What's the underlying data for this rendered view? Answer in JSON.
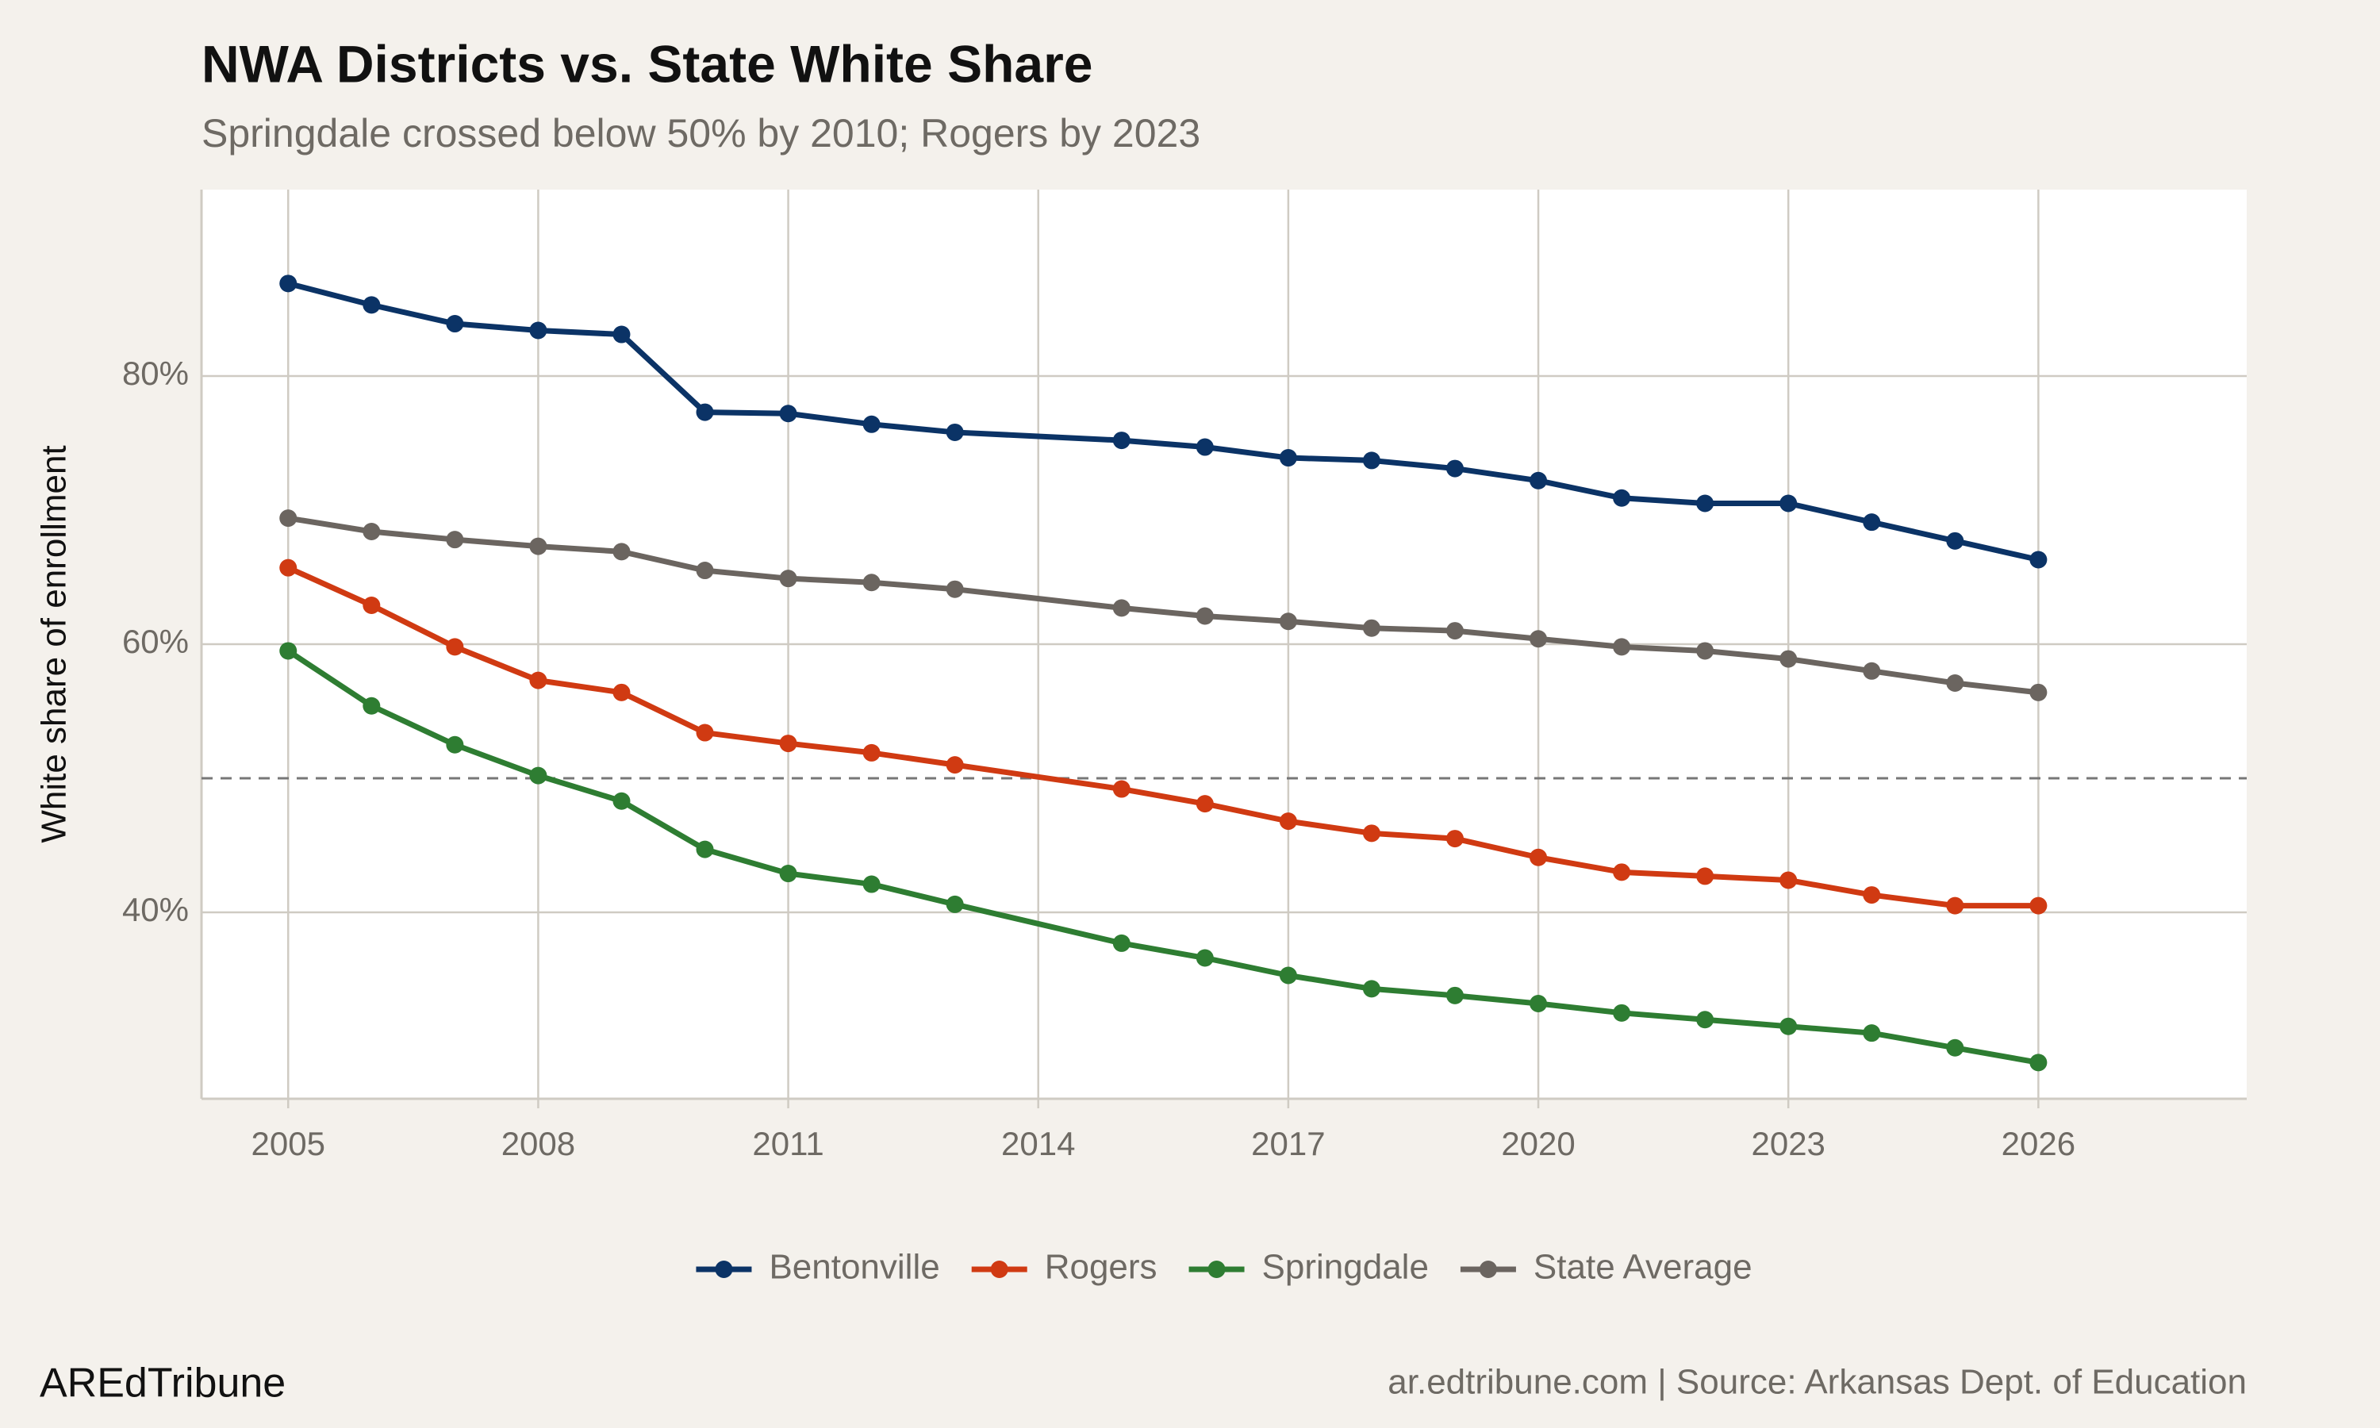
{
  "chart_data": {
    "type": "line",
    "title": "NWA Districts vs. State White Share",
    "subtitle": "Springdale crossed below 50% by 2010; Rogers by 2023",
    "y_label": "White share of enrollment",
    "brand": "AREdTribune",
    "caption": "ar.edtribune.com | Source: Arkansas Dept. of Education",
    "x": [
      2005,
      2006,
      2007,
      2008,
      2009,
      2010,
      2011,
      2012,
      2013,
      2015,
      2016,
      2017,
      2018,
      2019,
      2020,
      2021,
      2022,
      2023,
      2024,
      2025,
      2026
    ],
    "series": [
      {
        "name": "Bentonville",
        "color": "#0b3366",
        "values": [
          86.9,
          85.3,
          83.9,
          83.4,
          83.1,
          77.3,
          77.2,
          76.4,
          75.8,
          75.2,
          74.7,
          73.9,
          73.7,
          73.1,
          72.2,
          70.9,
          70.5,
          70.5,
          69.1,
          67.7,
          66.3
        ]
      },
      {
        "name": "Rogers",
        "color": "#d03a12",
        "values": [
          65.7,
          62.9,
          59.8,
          57.3,
          56.4,
          53.4,
          52.6,
          51.9,
          51.0,
          49.2,
          48.1,
          46.8,
          45.9,
          45.5,
          44.1,
          43.0,
          42.7,
          42.4,
          41.3,
          40.5,
          40.5
        ]
      },
      {
        "name": "Springdale",
        "color": "#2e7d32",
        "values": [
          59.5,
          55.4,
          52.5,
          50.2,
          48.3,
          44.7,
          42.9,
          42.1,
          40.6,
          37.7,
          36.6,
          35.3,
          34.3,
          33.8,
          33.2,
          32.5,
          32.0,
          31.5,
          31.0,
          29.9,
          28.8
        ]
      },
      {
        "name": "State Average",
        "color": "#6b6560",
        "values": [
          69.4,
          68.4,
          67.8,
          67.3,
          66.9,
          65.5,
          64.9,
          64.6,
          64.1,
          62.7,
          62.1,
          61.7,
          61.2,
          61.0,
          60.4,
          59.8,
          59.5,
          58.9,
          58.0,
          57.1,
          56.4
        ]
      }
    ],
    "hline": 50,
    "xlim": [
      2003.96,
      2028.5
    ],
    "ylim": [
      26.1,
      93.9
    ],
    "xticks": [
      2005,
      2008,
      2011,
      2014,
      2017,
      2020,
      2023,
      2026
    ],
    "yticks": [
      {
        "value": 40,
        "label": "40%"
      },
      {
        "value": 60,
        "label": "60%"
      },
      {
        "value": 80,
        "label": "80%"
      }
    ],
    "grid": true,
    "legend": "bottom"
  }
}
